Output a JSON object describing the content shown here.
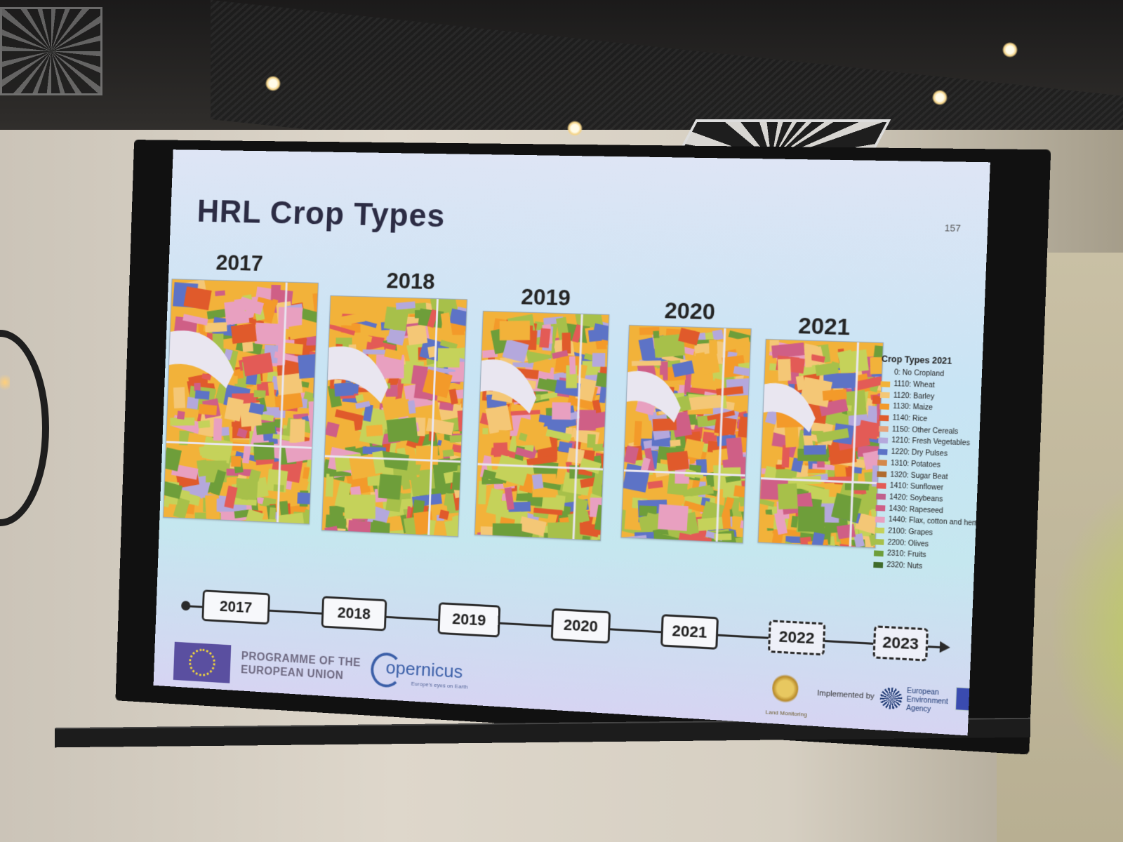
{
  "slide": {
    "title": "HRL Crop Types",
    "page_number": "157"
  },
  "maps": [
    {
      "year": "2017"
    },
    {
      "year": "2018"
    },
    {
      "year": "2019"
    },
    {
      "year": "2020"
    },
    {
      "year": "2021"
    }
  ],
  "legend": {
    "title": "Crop Types 2021",
    "items": [
      {
        "label": "0: No Cropland",
        "color": ""
      },
      {
        "label": "1110: Wheat",
        "color": "#f2b23a"
      },
      {
        "label": "1120: Barley",
        "color": "#f4c776"
      },
      {
        "label": "1130: Maize",
        "color": "#f39a2a"
      },
      {
        "label": "1140: Rice",
        "color": "#e05a2b"
      },
      {
        "label": "1150: Other Cereals",
        "color": "#e6a27a"
      },
      {
        "label": "1210: Fresh Vegetables",
        "color": "#b4a8dc"
      },
      {
        "label": "1220: Dry Pulses",
        "color": "#5d73c6"
      },
      {
        "label": "1310: Potatoes",
        "color": "#d4884a"
      },
      {
        "label": "1320: Sugar Beat",
        "color": "#b06c2e"
      },
      {
        "label": "1410: Sunflower",
        "color": "#e35b56"
      },
      {
        "label": "1420: Soybeans",
        "color": "#c0608c"
      },
      {
        "label": "1430: Rapeseed",
        "color": "#cf5f86"
      },
      {
        "label": "1440: Flax, cotton and hemp",
        "color": "#e8a0c0"
      },
      {
        "label": "2100: Grapes",
        "color": "#c5d25a"
      },
      {
        "label": "2200: Olives",
        "color": "#a7c04a"
      },
      {
        "label": "2310: Fruits",
        "color": "#6e9e3a"
      },
      {
        "label": "2320: Nuts",
        "color": "#3f6b2a"
      }
    ]
  },
  "timeline": {
    "years": [
      {
        "label": "2017",
        "style": "solid"
      },
      {
        "label": "2018",
        "style": "solid"
      },
      {
        "label": "2019",
        "style": "solid"
      },
      {
        "label": "2020",
        "style": "solid"
      },
      {
        "label": "2021",
        "style": "solid"
      },
      {
        "label": "2022",
        "style": "dashed"
      },
      {
        "label": "2023",
        "style": "dashed"
      }
    ]
  },
  "footer": {
    "programme_line1": "PROGRAMME OF THE",
    "programme_line2": "EUROPEAN UNION",
    "copernicus": "opernicus",
    "copernicus_tagline": "Europe's eyes on Earth",
    "land_monitoring": "Land Monitoring",
    "implemented_by": "Implemented by",
    "eea_line1": "European",
    "eea_line2": "Environment",
    "eea_line3": "Agency"
  },
  "map_palette": [
    "#f2b23a",
    "#f39a2a",
    "#e35b56",
    "#c5d25a",
    "#a7c04a",
    "#5d73c6",
    "#b4a8dc",
    "#e8a0c0",
    "#6e9e3a",
    "#cf5f86",
    "#f4c776",
    "#e05a2b"
  ]
}
